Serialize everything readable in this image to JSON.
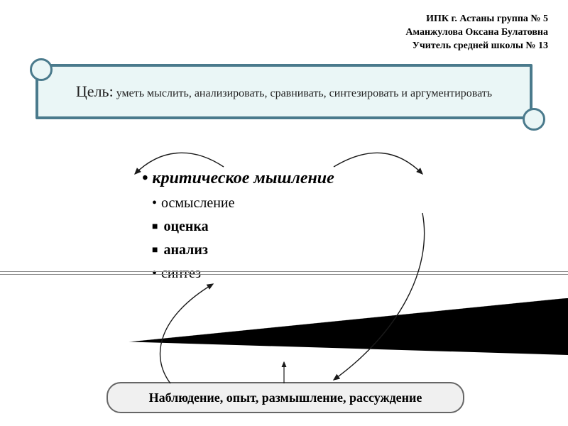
{
  "header": {
    "line1": "ИПК г. Астаны группа № 5",
    "line2": "Аманжулова Оксана Булатовна",
    "line3": "Учитель средней школы № 13"
  },
  "goal": {
    "label": "Цель:",
    "text": " уметь мыслить, анализировать, сравнивать, синтезировать  и аргументировать"
  },
  "concepts": {
    "title": "критическое мышление",
    "items": [
      {
        "text": "осмысление",
        "bullet": "dot",
        "bold": false
      },
      {
        "text": "оценка",
        "bullet": "square",
        "bold": true
      },
      {
        "text": "анализ",
        "bullet": "square",
        "bold": true
      },
      {
        "text": "синтез",
        "bullet": "dot",
        "bold": false
      }
    ]
  },
  "footer": {
    "text": "Наблюдение, опыт, размышление, рассуждение"
  },
  "colors": {
    "goal_border": "#4a7a8c",
    "goal_bg": "#eaf6f6",
    "wedge": "#000000",
    "arrow": "#1a1a1a"
  }
}
